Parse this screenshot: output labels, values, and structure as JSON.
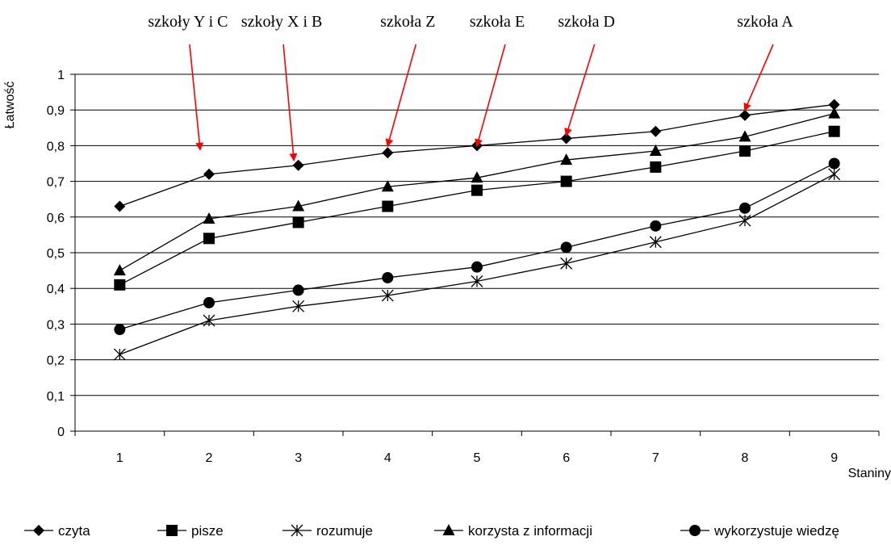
{
  "chart_data": {
    "type": "line",
    "title": "",
    "xlabel": "Staniny",
    "ylabel": "Łatwość",
    "x": [
      1,
      2,
      3,
      4,
      5,
      6,
      7,
      8,
      9
    ],
    "xticklabels": [
      "1",
      "2",
      "3",
      "4",
      "5",
      "6",
      "7",
      "8",
      "9"
    ],
    "yticklabels": [
      "0",
      "0,1",
      "0,2",
      "0,3",
      "0,4",
      "0,5",
      "0,6",
      "0,7",
      "0,8",
      "0,9",
      "1"
    ],
    "ylim": [
      0,
      1
    ],
    "grid": "horizontal",
    "legend_position": "bottom",
    "series": [
      {
        "name": "czyta",
        "marker": "diamond",
        "values": [
          0.63,
          0.72,
          0.745,
          0.78,
          0.8,
          0.82,
          0.84,
          0.885,
          0.915
        ]
      },
      {
        "name": "pisze",
        "marker": "square",
        "values": [
          0.41,
          0.54,
          0.585,
          0.63,
          0.675,
          0.7,
          0.74,
          0.785,
          0.84
        ]
      },
      {
        "name": "rozumuje",
        "marker": "asterisk",
        "values": [
          0.215,
          0.31,
          0.35,
          0.38,
          0.42,
          0.47,
          0.53,
          0.59,
          0.72
        ]
      },
      {
        "name": "korzysta z informacji",
        "marker": "triangle",
        "values": [
          0.45,
          0.595,
          0.63,
          0.685,
          0.71,
          0.76,
          0.785,
          0.825,
          0.89
        ]
      },
      {
        "name": "wykorzystuje wiedzę",
        "marker": "circle",
        "values": [
          0.285,
          0.36,
          0.395,
          0.43,
          0.46,
          0.515,
          0.575,
          0.625,
          0.75
        ]
      }
    ],
    "annotations": [
      {
        "text": "szkoły Y i C",
        "x": 1.9,
        "y": 0.79
      },
      {
        "text": "szkoły X i B",
        "x": 2.95,
        "y": 0.76
      },
      {
        "text": "szkoła Z",
        "x": 4.0,
        "y": 0.8
      },
      {
        "text": "szkoła E",
        "x": 5.0,
        "y": 0.8
      },
      {
        "text": "szkoła D",
        "x": 6.0,
        "y": 0.83
      },
      {
        "text": "szkoła A",
        "x": 8.0,
        "y": 0.9
      }
    ],
    "annotation_color": "#ff0000"
  }
}
